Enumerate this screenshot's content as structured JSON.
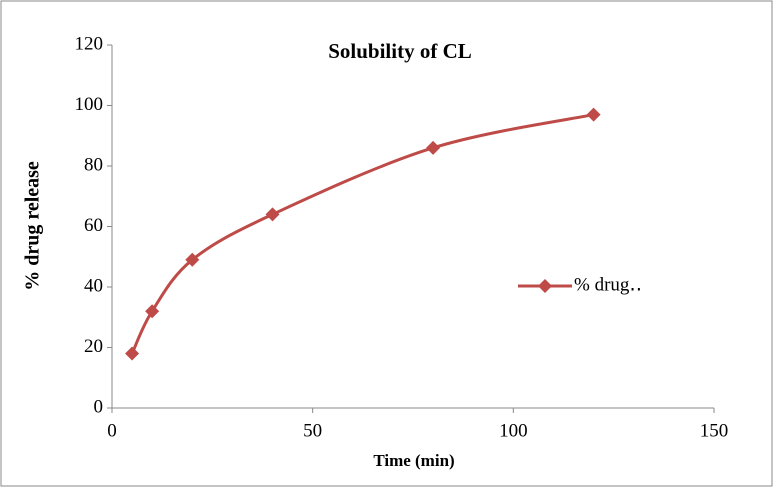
{
  "chart_data": {
    "type": "line",
    "title": "Solubility of CL",
    "x_label": "Time (min)",
    "y_label": "% drug release",
    "x": [
      5,
      10,
      20,
      40,
      80,
      120
    ],
    "series": [
      {
        "name": "% drug‥",
        "color": "#be4b48",
        "values": [
          18,
          32,
          49,
          64,
          86,
          97
        ]
      }
    ],
    "xlim": [
      0,
      150
    ],
    "xticks": [
      0,
      50,
      100,
      150
    ],
    "ylim": [
      0,
      120
    ],
    "yticks": [
      0,
      20,
      40,
      60,
      80,
      100,
      120
    ],
    "smooth": true,
    "marker": "diamond",
    "legend": "right"
  }
}
